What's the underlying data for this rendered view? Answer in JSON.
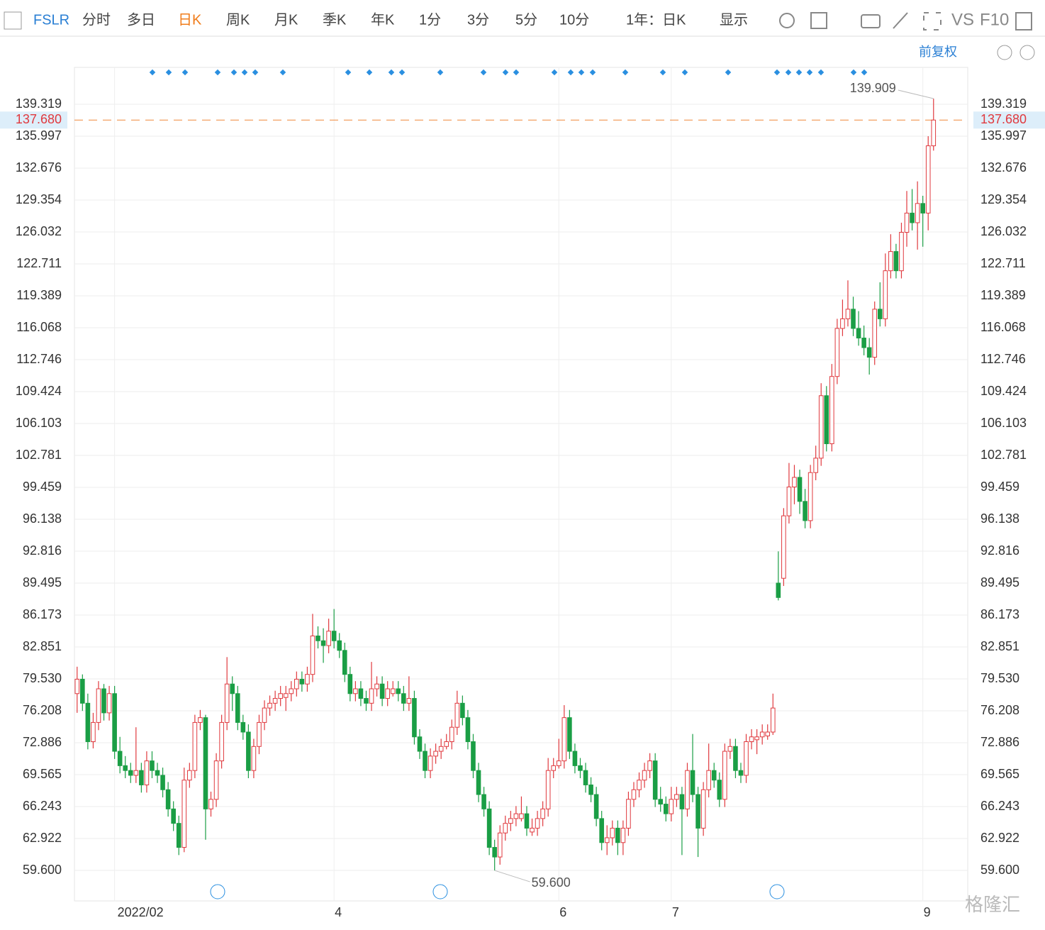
{
  "toolbar": {
    "symbol": "FSLR",
    "tabs": [
      "分时",
      "多日",
      "日K",
      "周K",
      "月K",
      "季K",
      "年K",
      "1分",
      "3分",
      "5分",
      "10分"
    ],
    "active": "日K",
    "range": "1年：日K",
    "display": "显示",
    "vs": "VS",
    "f10": "F10",
    "adjust": "前复权",
    "watermark": "格隆汇"
  },
  "chart_data": {
    "type": "candlestick",
    "up_color": "#e0393e",
    "down_color": "#1a9e45",
    "grid": true,
    "ylim": [
      56.43,
      143.16
    ],
    "yticks": [
      {
        "value": 59.6,
        "label": "59.600"
      },
      62.922,
      66.243,
      69.565,
      72.886,
      76.208,
      {
        "value": 79.53,
        "label": "79.530"
      },
      82.851,
      86.173,
      89.495,
      92.816,
      96.138,
      99.459,
      102.781,
      106.103,
      109.424,
      112.746,
      116.068,
      119.389,
      122.711,
      126.032,
      129.354,
      132.676,
      135.997,
      139.319
    ],
    "xticks": [
      {
        "index": 7,
        "label": "2022/02"
      },
      {
        "index": 48,
        "label": "4"
      },
      {
        "index": 90,
        "label": "6"
      },
      {
        "index": 111,
        "label": "7"
      },
      {
        "index": 158,
        "label": "9"
      }
    ],
    "last_price": {
      "value": 137.68,
      "label": "137.680"
    },
    "high_label": "139.909",
    "low_label": "59.600",
    "ohlc": [
      [
        78,
        80.8,
        76,
        79.5
      ],
      [
        79.5,
        80,
        76.2,
        77
      ],
      [
        77,
        78,
        72.2,
        73
      ],
      [
        73,
        76,
        72.3,
        75
      ],
      [
        75,
        79.3,
        74.2,
        78.5
      ],
      [
        78.5,
        79,
        75.2,
        76
      ],
      [
        76,
        78.8,
        75.2,
        78
      ],
      [
        78,
        78.8,
        71.2,
        72
      ],
      [
        72,
        73.5,
        69.7,
        70.5
      ],
      [
        70.5,
        71.5,
        69.2,
        70
      ],
      [
        70,
        70.8,
        68.7,
        69.5
      ],
      [
        69.5,
        74.5,
        68.7,
        70
      ],
      [
        70,
        70.8,
        67.7,
        68.5
      ],
      [
        68.5,
        72,
        67.7,
        71
      ],
      [
        71,
        72,
        69.2,
        70
      ],
      [
        70,
        70.8,
        68.7,
        69.5
      ],
      [
        69.5,
        70.3,
        67.2,
        68
      ],
      [
        68,
        68.8,
        65.2,
        66
      ],
      [
        66,
        66.8,
        63.7,
        64.5
      ],
      [
        64.5,
        65.3,
        61.2,
        62
      ],
      [
        62,
        70.3,
        61.5,
        69
      ],
      [
        69,
        70.8,
        68.2,
        70
      ],
      [
        70,
        75.8,
        69.2,
        75
      ],
      [
        75,
        76.3,
        74.2,
        75.5
      ],
      [
        75.5,
        75.8,
        62.8,
        66
      ],
      [
        66,
        67.8,
        65.2,
        67
      ],
      [
        67,
        71.8,
        66.2,
        71
      ],
      [
        71,
        75.8,
        70.2,
        75
      ],
      [
        75,
        81.8,
        74.2,
        79
      ],
      [
        79,
        79.8,
        76.2,
        78
      ],
      [
        78,
        78.8,
        74.2,
        75
      ],
      [
        75,
        75.8,
        73.2,
        74
      ],
      [
        74,
        74.8,
        69.2,
        70
      ],
      [
        70,
        73.3,
        69.2,
        72.5
      ],
      [
        72.5,
        75.8,
        71.7,
        75
      ],
      [
        75,
        77.3,
        74.2,
        76.5
      ],
      [
        76.5,
        77.8,
        75.7,
        77
      ],
      [
        77,
        78.3,
        76.2,
        77.5
      ],
      [
        77.5,
        78.8,
        76.7,
        78
      ],
      [
        77.6,
        78.8,
        76.2,
        78
      ],
      [
        78,
        79.3,
        77.2,
        78.5
      ],
      [
        78.5,
        80.3,
        77.7,
        79.5
      ],
      [
        79.5,
        80.3,
        78.2,
        79
      ],
      [
        79,
        80.8,
        78.2,
        80
      ],
      [
        80,
        86.3,
        79.2,
        84
      ],
      [
        84,
        85,
        82.7,
        83.5
      ],
      [
        83.5,
        84.8,
        81.2,
        83
      ],
      [
        83,
        85.8,
        82.2,
        84.5
      ],
      [
        84.5,
        86.8,
        82.7,
        83.5
      ],
      [
        83.5,
        84.3,
        81.7,
        82.5
      ],
      [
        82.5,
        83.3,
        79.2,
        80
      ],
      [
        80,
        80.8,
        77.2,
        78
      ],
      [
        78,
        79.3,
        77.2,
        78.5
      ],
      [
        78.5,
        79.3,
        76.7,
        77.5
      ],
      [
        77.5,
        78.3,
        76.2,
        77
      ],
      [
        77,
        81.3,
        76.2,
        78.5
      ],
      [
        78.5,
        79.8,
        77.7,
        79
      ],
      [
        79,
        79.8,
        76.7,
        77.5
      ],
      [
        77.5,
        79.3,
        76.7,
        78.5
      ],
      [
        78,
        79.3,
        77.7,
        78.5
      ],
      [
        78.5,
        79.3,
        77.2,
        78
      ],
      [
        78,
        78.8,
        76.2,
        77
      ],
      [
        77,
        79.8,
        76.2,
        77.5
      ],
      [
        77.5,
        78.3,
        72.7,
        73.5
      ],
      [
        73.5,
        74.3,
        71.2,
        72
      ],
      [
        72,
        72.8,
        69.2,
        70
      ],
      [
        70,
        72.3,
        69.2,
        71.5
      ],
      [
        71.5,
        72.8,
        70.7,
        72
      ],
      [
        72,
        73.3,
        71.2,
        72.5
      ],
      [
        72.5,
        73.8,
        72.2,
        73
      ],
      [
        73,
        75.3,
        72.2,
        74.5
      ],
      [
        74.5,
        78.3,
        73.7,
        77
      ],
      [
        77,
        77.8,
        74.7,
        75.5
      ],
      [
        75.5,
        76.3,
        72.2,
        73
      ],
      [
        73,
        73.8,
        69.2,
        70
      ],
      [
        70,
        70.8,
        66.7,
        67.5
      ],
      [
        67.5,
        68.3,
        65.2,
        66
      ],
      [
        66,
        66.8,
        61.2,
        62
      ],
      [
        62,
        62.8,
        59.6,
        61
      ],
      [
        61,
        64.3,
        60.2,
        63.5
      ],
      [
        63.5,
        65.3,
        62.7,
        64.5
      ],
      [
        64.5,
        65.8,
        63.7,
        65
      ],
      [
        65,
        66.3,
        64.2,
        65.5
      ],
      [
        65,
        67.3,
        64.7,
        65.5
      ],
      [
        65.5,
        66.3,
        63.2,
        64
      ],
      [
        63.6,
        65,
        63.2,
        64
      ],
      [
        64,
        65.8,
        63.2,
        65
      ],
      [
        65,
        66.8,
        64.2,
        66
      ],
      [
        66,
        71.3,
        65.2,
        70
      ],
      [
        70,
        71.3,
        69.2,
        70.5
      ],
      [
        70.5,
        73.3,
        70.2,
        71
      ],
      [
        71,
        76.8,
        70.2,
        75.5
      ],
      [
        75.5,
        76.3,
        71.2,
        72
      ],
      [
        72,
        72.8,
        69.7,
        70.5
      ],
      [
        70.5,
        71.3,
        69.2,
        70
      ],
      [
        70,
        70.8,
        67.7,
        68.5
      ],
      [
        68.5,
        69.3,
        66.7,
        67.5
      ],
      [
        67.5,
        68.3,
        64.2,
        65
      ],
      [
        65,
        65.8,
        61.7,
        62.5
      ],
      [
        62.5,
        64.3,
        61.2,
        63
      ],
      [
        63,
        64.8,
        62.2,
        64
      ],
      [
        64,
        64.8,
        61.2,
        62.5
      ],
      [
        62.5,
        64.8,
        61.2,
        64
      ],
      [
        64,
        67.8,
        63.2,
        67
      ],
      [
        67,
        68.8,
        66.2,
        68
      ],
      [
        68,
        69.8,
        67.2,
        69
      ],
      [
        69,
        70.8,
        68.2,
        70
      ],
      [
        70,
        71.8,
        69.2,
        71
      ],
      [
        71,
        71.8,
        66.2,
        67
      ],
      [
        67,
        68.3,
        65.7,
        66.5
      ],
      [
        66.5,
        67.3,
        64.7,
        65.5
      ],
      [
        65.5,
        68.3,
        64.7,
        67
      ],
      [
        67,
        68.3,
        66.2,
        67.5
      ],
      [
        67.5,
        68.3,
        61.2,
        66
      ],
      [
        66,
        70.8,
        65.2,
        70
      ],
      [
        70,
        73.8,
        66.7,
        67.5
      ],
      [
        67.5,
        68.3,
        61,
        64
      ],
      [
        64,
        68.8,
        63.2,
        68
      ],
      [
        68,
        72.8,
        67.2,
        70
      ],
      [
        70,
        70.8,
        68.2,
        69
      ],
      [
        69,
        69.8,
        66.2,
        67
      ],
      [
        67,
        72.8,
        66.2,
        72
      ],
      [
        72,
        73.3,
        71.2,
        72.5
      ],
      [
        72.5,
        73.3,
        69.2,
        70
      ],
      [
        70,
        70.8,
        68.7,
        69.5
      ],
      [
        69.5,
        73.8,
        68.7,
        73
      ],
      [
        73,
        74.3,
        72.2,
        73.5
      ],
      [
        73.2,
        74.3,
        71.7,
        73.5
      ],
      [
        73.5,
        74.8,
        72.7,
        74
      ],
      [
        73.6,
        74.8,
        73.2,
        74
      ],
      [
        74,
        78,
        73.7,
        76.5
      ],
      [
        89.5,
        92.8,
        87.7,
        88
      ],
      [
        90,
        97.3,
        89.2,
        96.5
      ],
      [
        96.5,
        102,
        95.7,
        99.5
      ],
      [
        99.5,
        101.8,
        97.7,
        100.5
      ],
      [
        100.5,
        101.3,
        96.7,
        98
      ],
      [
        98,
        99.3,
        95.2,
        96
      ],
      [
        96,
        101.8,
        95.2,
        101
      ],
      [
        101,
        103.8,
        100.2,
        102.5
      ],
      [
        102.5,
        110.3,
        101.7,
        109
      ],
      [
        109,
        110,
        103.2,
        104
      ],
      [
        104,
        112.3,
        103.2,
        111
      ],
      [
        111,
        117,
        110.2,
        116
      ],
      [
        116,
        119,
        115.2,
        117
      ],
      [
        117,
        121,
        116.2,
        118
      ],
      [
        118,
        119.3,
        115.2,
        116
      ],
      [
        116,
        117.8,
        114.2,
        115
      ],
      [
        115,
        116.3,
        113.2,
        114
      ],
      [
        114,
        115,
        111.2,
        113
      ],
      [
        113,
        118.8,
        112.2,
        118
      ],
      [
        118,
        120.8,
        116.2,
        117
      ],
      [
        117,
        123.8,
        116.2,
        122
      ],
      [
        122,
        125.8,
        121.2,
        124
      ],
      [
        124,
        124.8,
        121.2,
        122
      ],
      [
        122,
        127,
        121.2,
        126
      ],
      [
        126,
        130.3,
        124.5,
        128
      ],
      [
        128,
        130.5,
        126.2,
        127
      ],
      [
        127,
        131.3,
        124.2,
        129
      ],
      [
        129,
        129.8,
        124.5,
        128
      ],
      [
        128,
        136,
        126.2,
        135
      ],
      [
        135,
        139.909,
        134.5,
        137.68
      ]
    ]
  }
}
